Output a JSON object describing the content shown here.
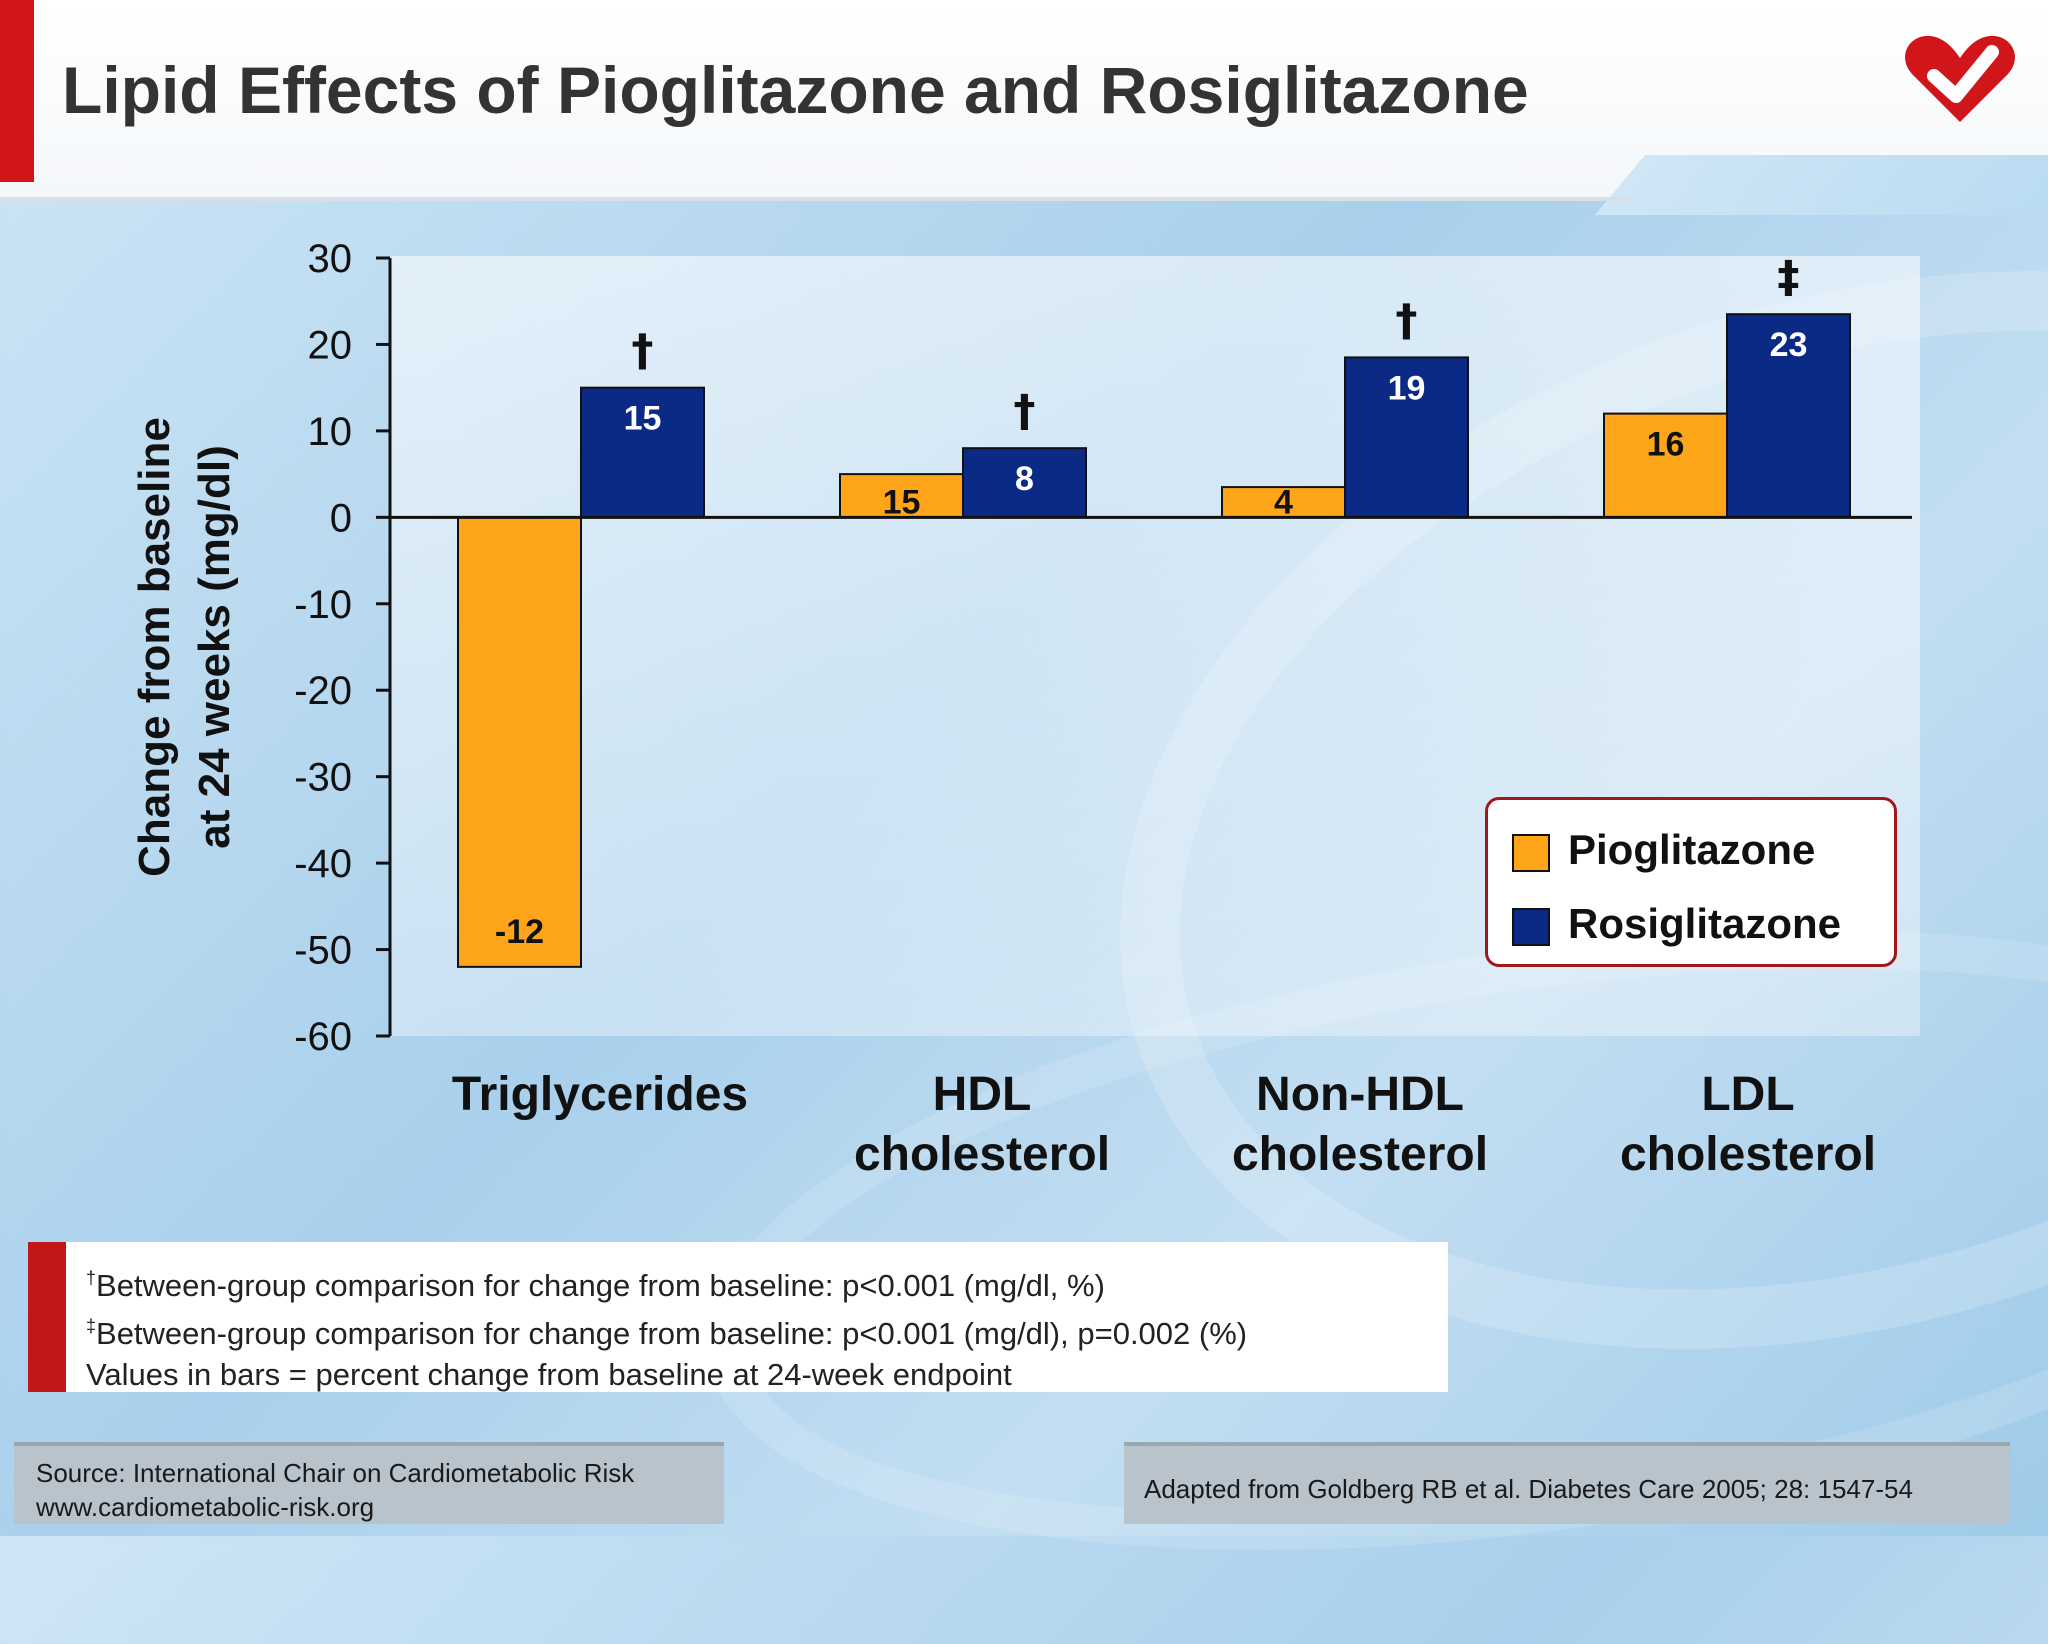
{
  "slide": {
    "title": "Lipid Effects of Pioglitazone and Rosiglitazone",
    "logo_icon": "heart-check-icon",
    "colors": {
      "accent_red": "#d0161b",
      "pioglitazone": "#ffa51a",
      "rosiglitazone": "#0a2a86"
    }
  },
  "chart_data": {
    "type": "bar",
    "title": "",
    "xlabel": "",
    "ylabel": "Change from baseline\nat 24 weeks (mg/dl)",
    "ylim": [
      -60,
      30
    ],
    "yticks": [
      30,
      20,
      10,
      0,
      -10,
      -20,
      -30,
      -40,
      -50,
      -60
    ],
    "categories": [
      "Triglycerides",
      "HDL\ncholesterol",
      "Non-HDL\ncholesterol",
      "LDL cholesterol"
    ],
    "series": [
      {
        "name": "Pioglitazone",
        "color": "#ffa51a",
        "values": [
          -52,
          5,
          3.5,
          12
        ],
        "bar_labels": [
          "-12",
          "15",
          "4",
          "16"
        ],
        "significance": [
          "",
          "",
          "",
          ""
        ]
      },
      {
        "name": "Rosiglitazone",
        "color": "#0a2a86",
        "values": [
          15,
          8,
          18.5,
          23.5
        ],
        "bar_labels": [
          "15",
          "8",
          "19",
          "23"
        ],
        "significance": [
          "†",
          "†",
          "†",
          "‡"
        ]
      }
    ],
    "grid": false,
    "legend_position": "bottom-right"
  },
  "footnotes": {
    "dagger_mark": "†",
    "dagger_text": "Between-group comparison for change from baseline: p<0.001 (mg/dl, %)",
    "ddagger_mark": "‡",
    "ddagger_text": "Between-group comparison for change from baseline: p<0.001 (mg/dl), p=0.002 (%)",
    "values_note": "Values in bars = percent change from baseline at 24-week endpoint"
  },
  "source": {
    "line1": "Source: International Chair on Cardiometabolic Risk",
    "line2": "www.cardiometabolic-risk.org"
  },
  "adapted_from": "Adapted from Goldberg RB et al. Diabetes Care 2005; 28: 1547-54"
}
